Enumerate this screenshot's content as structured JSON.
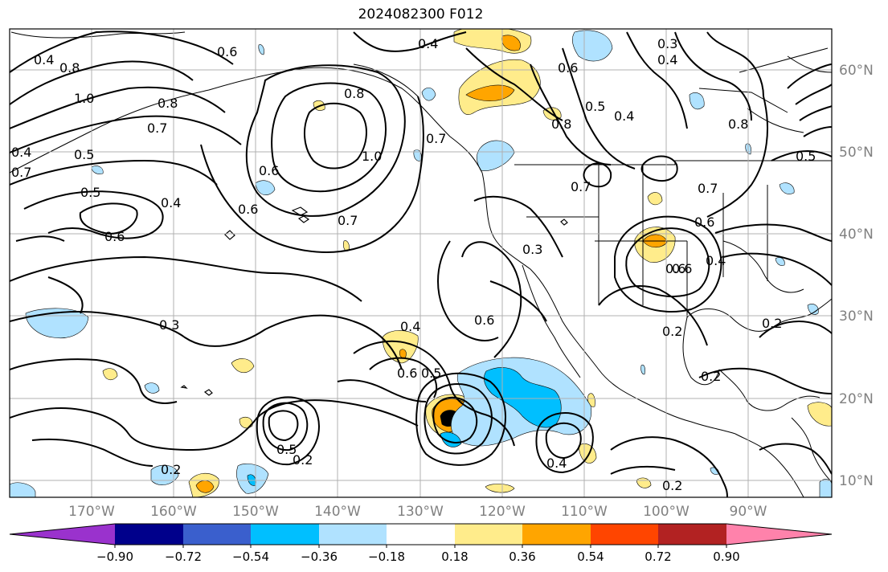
{
  "title": "2024082300 F012",
  "lon_labels": [
    "170°W",
    "160°W",
    "150°W",
    "140°W",
    "130°W",
    "120°W",
    "110°W",
    "100°W",
    "90°W"
  ],
  "lat_labels": [
    "60°N",
    "50°N",
    "40°N",
    "30°N",
    "20°N",
    "10°N"
  ],
  "colorbar": {
    "colors": [
      "#9a32cd",
      "#00008b",
      "#3a5fcd",
      "#00bfff",
      "#b0e2ff",
      "#ffffff",
      "#ffec8b",
      "#ffa500",
      "#ff4500",
      "#b22222",
      "#ff82ab"
    ],
    "labels": [
      "−0.90",
      "−0.72",
      "−0.54",
      "−0.36",
      "−0.18",
      "0.18",
      "0.36",
      "0.54",
      "0.72",
      "0.90"
    ]
  },
  "contour_labels": [
    "0.4",
    "0.3",
    "0.4",
    "0.6",
    "0.5",
    "0.8",
    "0.4",
    "0.8",
    "0.7",
    "1.0",
    "0.8",
    "1.0",
    "0.7",
    "0.5",
    "0.6",
    "0.7",
    "0.6",
    "0.4",
    "0.5",
    "0.6",
    "0.6",
    "0.7",
    "0.3",
    "0.6",
    "0.4",
    "0.6",
    "0.5",
    "0.2",
    "0.3",
    "0.2",
    "0.5",
    "0.2",
    "0.4",
    "0.2",
    "0.2",
    "0.6",
    "0.4",
    "0.2",
    "0.7",
    "0.8",
    "0.5",
    "0.6",
    "0.4",
    "0.7",
    "0.8",
    "0.4",
    "0.6"
  ]
}
